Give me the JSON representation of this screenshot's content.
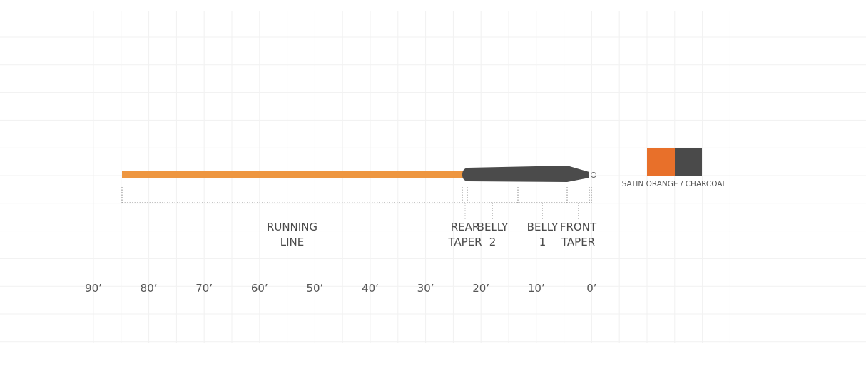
{
  "segments": [
    {
      "label": [
        "RUNNING",
        "LINE"
      ]
    },
    {
      "label": [
        "REAR",
        "TAPER"
      ]
    },
    {
      "label": [
        "BELLY",
        "2"
      ]
    },
    {
      "label": [
        "BELLY",
        "1"
      ]
    },
    {
      "label": [
        "FRONT",
        "TAPER"
      ]
    }
  ],
  "scale": [
    "90’",
    "80’",
    "70’",
    "60’",
    "50’",
    "40’",
    "30’",
    "20’",
    "10’",
    "0’"
  ],
  "color": {
    "label": "SATIN ORANGE / CHARCOAL"
  }
}
